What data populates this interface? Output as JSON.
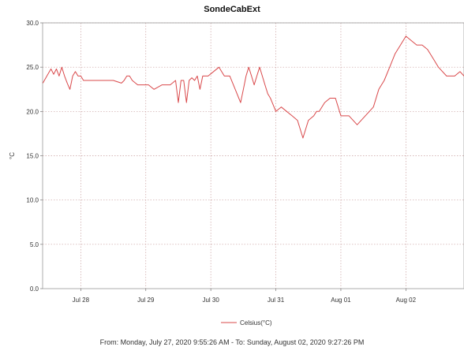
{
  "chart_data": {
    "type": "line",
    "title": "SondeCabExt",
    "xlabel": "",
    "ylabel": "°C",
    "ylim": [
      0,
      30
    ],
    "y_ticks": [
      "0.0",
      "5.0",
      "10.0",
      "15.0",
      "20.0",
      "25.0",
      "30.0"
    ],
    "y_tick_values": [
      0,
      5,
      10,
      15,
      20,
      25,
      30
    ],
    "x_ticks": [
      "Jul 28",
      "Jul 29",
      "Jul 30",
      "Jul 31",
      "Aug 01",
      "Aug 02"
    ],
    "x_tick_values": [
      "2020-07-28",
      "2020-07-29",
      "2020-07-30",
      "2020-07-31",
      "2020-08-01",
      "2020-08-02"
    ],
    "xlim": [
      "2020-07-27 09:55",
      "2020-08-02 21:27"
    ],
    "grid": true,
    "legend_position": "bottom-center",
    "series": [
      {
        "name": "Celsius(°C)",
        "color": "#d9484a",
        "x": [
          "2020-07-27 10:00",
          "2020-07-27 11:30",
          "2020-07-27 13:00",
          "2020-07-27 14:00",
          "2020-07-27 15:00",
          "2020-07-27 16:00",
          "2020-07-27 17:00",
          "2020-07-27 18:00",
          "2020-07-27 19:00",
          "2020-07-27 20:00",
          "2020-07-27 21:00",
          "2020-07-27 22:00",
          "2020-07-27 23:00",
          "2020-07-28 00:00",
          "2020-07-28 01:00",
          "2020-07-28 02:00",
          "2020-07-28 04:00",
          "2020-07-28 06:00",
          "2020-07-28 09:00",
          "2020-07-28 12:00",
          "2020-07-28 15:00",
          "2020-07-28 16:00",
          "2020-07-28 17:00",
          "2020-07-28 18:00",
          "2020-07-28 19:00",
          "2020-07-28 21:00",
          "2020-07-28 23:00",
          "2020-07-29 01:00",
          "2020-07-29 03:00",
          "2020-07-29 06:00",
          "2020-07-29 09:00",
          "2020-07-29 11:00",
          "2020-07-29 12:00",
          "2020-07-29 13:00",
          "2020-07-29 14:00",
          "2020-07-29 15:00",
          "2020-07-29 16:00",
          "2020-07-29 17:00",
          "2020-07-29 18:00",
          "2020-07-29 19:00",
          "2020-07-29 20:00",
          "2020-07-29 21:00",
          "2020-07-29 23:00",
          "2020-07-30 01:00",
          "2020-07-30 03:00",
          "2020-07-30 05:00",
          "2020-07-30 07:00",
          "2020-07-30 09:00",
          "2020-07-30 11:00",
          "2020-07-30 12:00",
          "2020-07-30 13:00",
          "2020-07-30 14:00",
          "2020-07-30 15:00",
          "2020-07-30 16:00",
          "2020-07-30 17:00",
          "2020-07-30 18:00",
          "2020-07-30 19:00",
          "2020-07-30 20:00",
          "2020-07-30 21:00",
          "2020-07-30 22:00",
          "2020-07-31 00:00",
          "2020-07-31 02:00",
          "2020-07-31 04:00",
          "2020-07-31 06:00",
          "2020-07-31 08:00",
          "2020-07-31 10:00",
          "2020-07-31 12:00",
          "2020-07-31 14:00",
          "2020-07-31 15:00",
          "2020-07-31 16:00",
          "2020-07-31 17:00",
          "2020-07-31 18:00",
          "2020-07-31 20:00",
          "2020-07-31 22:00",
          "2020-08-01 00:00",
          "2020-08-01 03:00",
          "2020-08-01 06:00",
          "2020-08-01 09:00",
          "2020-08-01 12:00",
          "2020-08-01 14:00",
          "2020-08-01 16:00",
          "2020-08-01 18:00",
          "2020-08-01 20:00",
          "2020-08-01 22:00",
          "2020-08-02 00:00",
          "2020-08-02 02:00",
          "2020-08-02 04:00",
          "2020-08-02 06:00",
          "2020-08-02 08:00",
          "2020-08-02 10:00",
          "2020-08-02 12:00",
          "2020-08-02 15:00",
          "2020-08-02 18:00",
          "2020-08-02 20:00",
          "2020-08-02 21:27"
        ],
        "values": [
          23.2,
          24.0,
          24.8,
          24.2,
          24.8,
          24.0,
          25.0,
          24.0,
          23.2,
          22.5,
          24.0,
          24.5,
          24.0,
          24.0,
          23.5,
          23.5,
          23.5,
          23.5,
          23.5,
          23.5,
          23.2,
          23.5,
          24.0,
          24.0,
          23.5,
          23.0,
          23.0,
          23.0,
          22.5,
          23.0,
          23.0,
          23.5,
          21.0,
          23.5,
          23.5,
          21.0,
          23.5,
          23.8,
          23.5,
          24.0,
          22.5,
          24.0,
          24.0,
          24.5,
          25.0,
          24.0,
          24.0,
          22.5,
          21.0,
          22.5,
          24.0,
          25.0,
          24.0,
          23.0,
          24.0,
          25.0,
          24.0,
          23.0,
          22.0,
          21.5,
          20.0,
          20.5,
          20.0,
          19.5,
          19.0,
          17.0,
          19.0,
          19.5,
          20.0,
          20.0,
          20.5,
          21.0,
          21.5,
          21.5,
          19.5,
          19.5,
          18.5,
          19.5,
          20.5,
          22.5,
          23.5,
          25.0,
          26.5,
          27.5,
          28.5,
          28.0,
          27.5,
          27.5,
          27.0,
          26.0,
          25.0,
          24.0,
          24.0,
          24.5,
          24.0
        ]
      }
    ]
  },
  "footer": {
    "text": "From: Monday, July 27, 2020 9:55:26 AM  -  To: Sunday, August 02, 2020 9:27:26 PM"
  }
}
